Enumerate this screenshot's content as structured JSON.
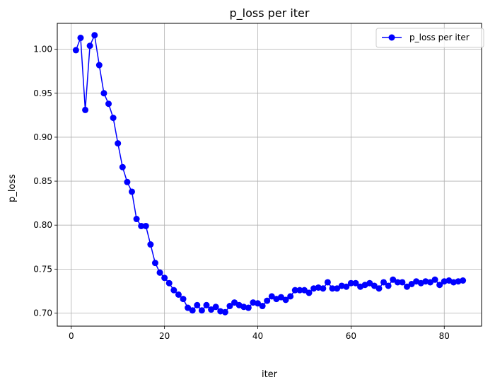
{
  "chart_data": {
    "type": "line",
    "title": "p_loss per iter",
    "xlabel": "iter",
    "ylabel": "p_loss",
    "xlim": [
      -3,
      88
    ],
    "ylim": [
      0.6851,
      1.0295
    ],
    "grid": true,
    "legend_position": "top-right",
    "x_ticks": [
      0,
      20,
      40,
      60,
      80
    ],
    "x_tick_labels": [
      "0",
      "20",
      "40",
      "60",
      "80"
    ],
    "y_ticks": [
      0.7,
      0.75,
      0.8,
      0.85,
      0.9,
      0.95,
      1.0
    ],
    "y_tick_labels": [
      "0.70",
      "0.75",
      "0.80",
      "0.85",
      "0.90",
      "0.95",
      "1.00"
    ],
    "series": [
      {
        "name": "p_loss per iter",
        "color": "#0000ff",
        "marker": "circle",
        "x": [
          1,
          2,
          3,
          4,
          5,
          6,
          7,
          8,
          9,
          10,
          11,
          12,
          13,
          14,
          15,
          16,
          17,
          18,
          19,
          20,
          21,
          22,
          23,
          24,
          25,
          26,
          27,
          28,
          29,
          30,
          31,
          32,
          33,
          34,
          35,
          36,
          37,
          38,
          39,
          40,
          41,
          42,
          43,
          44,
          45,
          46,
          47,
          48,
          49,
          50,
          51,
          52,
          53,
          54,
          55,
          56,
          57,
          58,
          59,
          60,
          61,
          62,
          63,
          64,
          65,
          66,
          67,
          68,
          69,
          70,
          71,
          72,
          73,
          74,
          75,
          76,
          77,
          78,
          79,
          80,
          81,
          82,
          83,
          84
        ],
        "values": [
          0.999,
          1.013,
          0.931,
          1.004,
          1.016,
          0.982,
          0.95,
          0.938,
          0.922,
          0.893,
          0.866,
          0.849,
          0.838,
          0.807,
          0.799,
          0.799,
          0.778,
          0.757,
          0.746,
          0.74,
          0.734,
          0.726,
          0.721,
          0.716,
          0.706,
          0.703,
          0.709,
          0.703,
          0.709,
          0.704,
          0.707,
          0.702,
          0.701,
          0.708,
          0.712,
          0.709,
          0.707,
          0.706,
          0.712,
          0.711,
          0.708,
          0.714,
          0.719,
          0.716,
          0.718,
          0.715,
          0.719,
          0.726,
          0.726,
          0.726,
          0.723,
          0.728,
          0.729,
          0.728,
          0.735,
          0.728,
          0.728,
          0.731,
          0.73,
          0.734,
          0.734,
          0.73,
          0.732,
          0.734,
          0.731,
          0.728,
          0.735,
          0.731,
          0.738,
          0.735,
          0.735,
          0.73,
          0.733,
          0.736,
          0.734,
          0.736,
          0.735,
          0.738,
          0.732,
          0.736,
          0.737,
          0.735,
          0.736,
          0.737
        ]
      }
    ]
  }
}
